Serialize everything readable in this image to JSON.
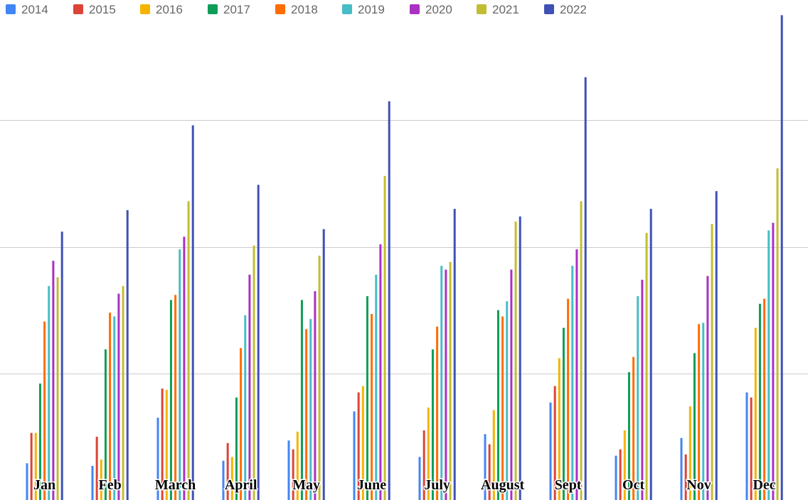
{
  "chart_data": {
    "type": "bar",
    "title": "",
    "xlabel": "",
    "ylabel": "",
    "ylim": [
      0,
      3.95
    ],
    "gridlines": [
      1,
      2,
      3
    ],
    "grid": true,
    "legend_position": "top-left",
    "categories": [
      "Jan",
      "Feb",
      "March",
      "April",
      "May",
      "June",
      "July",
      "August",
      "Sept",
      "Oct",
      "Nov",
      "Dec"
    ],
    "series": [
      {
        "name": "2014",
        "color": "#4285f4",
        "values": [
          0.29,
          0.27,
          0.65,
          0.31,
          0.47,
          0.7,
          0.34,
          0.52,
          0.77,
          0.35,
          0.49,
          0.85
        ]
      },
      {
        "name": "2015",
        "color": "#db4437",
        "values": [
          0.53,
          0.5,
          0.88,
          0.45,
          0.4,
          0.85,
          0.55,
          0.44,
          0.9,
          0.4,
          0.36,
          0.81
        ]
      },
      {
        "name": "2016",
        "color": "#f4b400",
        "values": [
          0.53,
          0.32,
          0.87,
          0.34,
          0.54,
          0.9,
          0.73,
          0.71,
          1.12,
          0.55,
          0.74,
          1.36
        ]
      },
      {
        "name": "2017",
        "color": "#0f9d58",
        "values": [
          0.92,
          1.19,
          1.58,
          0.81,
          1.58,
          1.61,
          1.19,
          1.5,
          1.36,
          1.01,
          1.16,
          1.55
        ]
      },
      {
        "name": "2018",
        "color": "#ff6d01",
        "values": [
          1.41,
          1.48,
          1.62,
          1.2,
          1.35,
          1.47,
          1.37,
          1.45,
          1.59,
          1.13,
          1.39,
          1.59
        ]
      },
      {
        "name": "2019",
        "color": "#46bdc6",
        "values": [
          1.69,
          1.45,
          1.98,
          1.46,
          1.43,
          1.78,
          1.85,
          1.57,
          1.85,
          1.61,
          1.4,
          2.13
        ]
      },
      {
        "name": "2020",
        "color": "#ab30c4",
        "values": [
          1.89,
          1.63,
          2.08,
          1.78,
          1.65,
          2.02,
          1.82,
          1.82,
          1.98,
          1.74,
          1.77,
          2.19
        ]
      },
      {
        "name": "2021",
        "color": "#c2bd32",
        "values": [
          1.76,
          1.69,
          2.36,
          2.01,
          1.93,
          2.56,
          1.88,
          2.2,
          2.36,
          2.11,
          2.18,
          2.62
        ]
      },
      {
        "name": "2022",
        "color": "#3f51b5",
        "values": [
          2.12,
          2.29,
          2.96,
          2.49,
          2.14,
          3.15,
          2.3,
          2.24,
          3.34,
          2.3,
          2.44,
          3.83
        ]
      }
    ]
  }
}
